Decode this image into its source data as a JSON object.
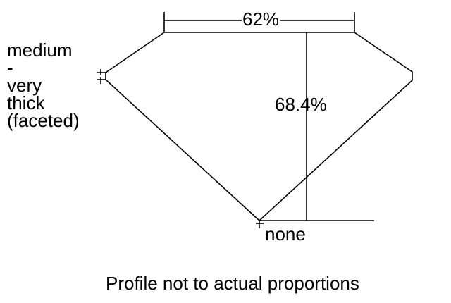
{
  "girdle": {
    "lines": [
      "medium",
      "-",
      "very",
      "thick",
      "(faceted)"
    ]
  },
  "table_percent": "62%",
  "depth_percent": "68.4%",
  "culet": "none",
  "caption": "Profile not to actual proportions",
  "colors": {
    "line": "#000000",
    "background": "#ffffff"
  }
}
